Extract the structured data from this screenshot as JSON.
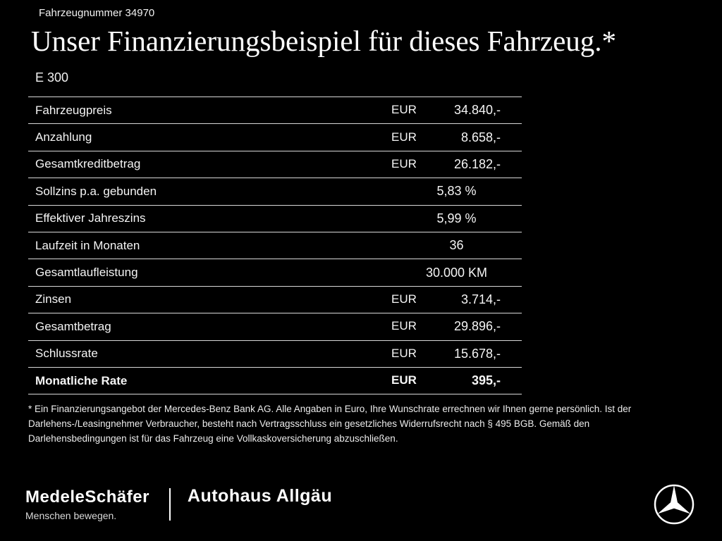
{
  "header": {
    "vehicle_number": "Fahrzeugnummer 34970",
    "title": "Unser Finanzierungsbeispiel für dieses Fahrzeug.*",
    "model": "E 300"
  },
  "table": {
    "rows": [
      {
        "label": "Fahrzeugpreis",
        "currency": "EUR",
        "value": "34.840,-",
        "bold": false
      },
      {
        "label": "Anzahlung",
        "currency": "EUR",
        "value": "8.658,-",
        "bold": false
      },
      {
        "label": "Gesamtkreditbetrag",
        "currency": "EUR",
        "value": "26.182,-",
        "bold": false
      },
      {
        "label": "Sollzins p.a. gebunden",
        "currency": "",
        "value": "5,83 %",
        "bold": false
      },
      {
        "label": "Effektiver Jahreszins",
        "currency": "",
        "value": "5,99 %",
        "bold": false
      },
      {
        "label": "Laufzeit in Monaten",
        "currency": "",
        "value": "36",
        "bold": false
      },
      {
        "label": "Gesamtlaufleistung",
        "currency": "",
        "value": "30.000 KM",
        "bold": false
      },
      {
        "label": "Zinsen",
        "currency": "EUR",
        "value": "3.714,-",
        "bold": false
      },
      {
        "label": "Gesamtbetrag",
        "currency": "EUR",
        "value": "29.896,-",
        "bold": false
      },
      {
        "label": "Schlussrate",
        "currency": "EUR",
        "value": "15.678,-",
        "bold": false
      },
      {
        "label": "Monatliche Rate",
        "currency": "EUR",
        "value": "395,-",
        "bold": true
      }
    ]
  },
  "footnote": "* Ein Finanzierungsangebot der Mercedes-Benz Bank AG. Alle Angaben in Euro, Ihre Wunschrate errechnen wir Ihnen gerne persönlich. Ist der Darlehens-/Leasingnehmer Verbraucher, besteht nach Vertragsschluss ein gesetzliches Widerrufsrecht nach § 495 BGB. Gemäß den Darlehensbedingungen ist für das Fahrzeug eine Vollkaskoversicherung abzuschließen.",
  "footer": {
    "dealer1_name": "MedeleSchäfer",
    "dealer1_tagline": "Menschen bewegen.",
    "dealer2_name": "Autohaus Allgäu",
    "brand_icon": "mercedes-star",
    "colors": {
      "background": "#000000",
      "text": "#ffffff",
      "divider_line": "#d8d8d8"
    }
  }
}
